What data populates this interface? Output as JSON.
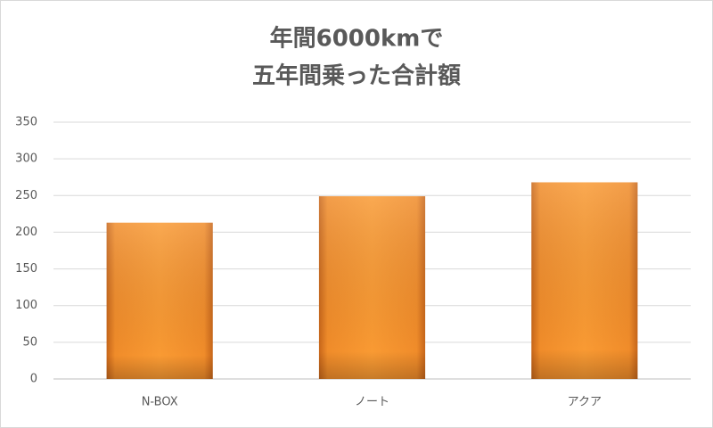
{
  "chart_data": {
    "type": "bar",
    "title": [
      "年間6000kmで",
      "五年間乗った合計額"
    ],
    "categories": [
      "N-BOX",
      "ノート",
      "アクア"
    ],
    "values": [
      213,
      249,
      268
    ],
    "color": "#f7962b",
    "ylim": [
      0,
      350
    ],
    "yticks": [
      0,
      50,
      100,
      150,
      200,
      250,
      300,
      350
    ],
    "grid": true
  }
}
